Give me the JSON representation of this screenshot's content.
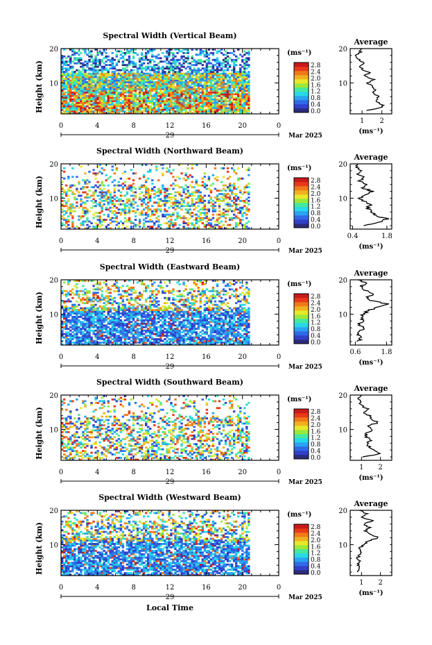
{
  "figure": {
    "xlabel_bottom": "Local Time"
  },
  "colorbar": {
    "unit_label": "(ms⁻¹)",
    "ticks": [
      "2.8",
      "2.4",
      "2.0",
      "1.6",
      "1.2",
      "0.8",
      "0.4",
      "0.0"
    ],
    "colors": [
      "#2b2b7a",
      "#3040c8",
      "#2f6ae6",
      "#2aa3f0",
      "#28d8e8",
      "#45e8a0",
      "#9be83c",
      "#e8e82a",
      "#f0b020",
      "#f07a1a",
      "#e83a1a",
      "#c81a1a"
    ]
  },
  "chart_data": [
    {
      "type": "heatmap",
      "title": "Spectral Width (Vertical Beam)",
      "ylabel": "Height (km)",
      "xlim": [
        0,
        24
      ],
      "ylim": [
        1,
        20
      ],
      "x_ticks": [
        "0",
        "4",
        "8",
        "12",
        "16",
        "20",
        "0"
      ],
      "day_label": "29",
      "date_label": "Mar 2025",
      "data_end_hour": 20.8,
      "pattern": "vertical",
      "profile": {
        "title": "Average",
        "xlabel": "(ms⁻¹)",
        "x_ticks": [
          "1",
          "2"
        ],
        "xlim": [
          0.4,
          2.5
        ],
        "heights": [
          2,
          3,
          4,
          5,
          6,
          7,
          8,
          9,
          10,
          11,
          12,
          13,
          14,
          15,
          16,
          17,
          18,
          19,
          20
        ],
        "values": [
          1.2,
          2.1,
          1.9,
          1.7,
          1.8,
          1.6,
          1.7,
          1.5,
          1.3,
          1.6,
          1.1,
          1.4,
          1.0,
          0.9,
          1.1,
          0.8,
          0.7,
          0.9,
          1.0
        ]
      }
    },
    {
      "type": "heatmap",
      "title": "Spectral Width (Northward Beam)",
      "ylabel": "Height (km)",
      "xlim": [
        0,
        24
      ],
      "ylim": [
        1,
        20
      ],
      "x_ticks": [
        "0",
        "4",
        "8",
        "12",
        "16",
        "20",
        "0"
      ],
      "day_label": "29",
      "date_label": "Mar 2025",
      "data_end_hour": 20.8,
      "pattern": "sparse",
      "profile": {
        "title": "Average",
        "xlabel": "(ms⁻¹)",
        "x_ticks": [
          "0.4",
          "1.8"
        ],
        "xlim": [
          0.3,
          2.0
        ],
        "heights": [
          2,
          3,
          4,
          5,
          6,
          7,
          8,
          9,
          10,
          11,
          12,
          13,
          14,
          15,
          16,
          17,
          18,
          19,
          20
        ],
        "values": [
          0.9,
          1.5,
          1.8,
          1.3,
          1.2,
          1.0,
          1.1,
          0.9,
          0.7,
          1.0,
          1.2,
          0.8,
          1.0,
          0.7,
          0.9,
          0.6,
          0.8,
          0.5,
          0.6
        ]
      }
    },
    {
      "type": "heatmap",
      "title": "Spectral Width (Eastward Beam)",
      "ylabel": "Height (km)",
      "xlim": [
        0,
        24
      ],
      "ylim": [
        1,
        20
      ],
      "x_ticks": [
        "0",
        "4",
        "8",
        "12",
        "16",
        "20",
        "0"
      ],
      "day_label": "29",
      "date_label": "Mar 2025",
      "data_end_hour": 20.8,
      "pattern": "dense_low",
      "profile": {
        "title": "Average",
        "xlabel": "(ms⁻¹)",
        "x_ticks": [
          "0.6",
          "1.8"
        ],
        "xlim": [
          0.4,
          2.0
        ],
        "heights": [
          2,
          3,
          4,
          5,
          6,
          7,
          8,
          9,
          10,
          11,
          12,
          13,
          14,
          15,
          16,
          17,
          18,
          19,
          20
        ],
        "values": [
          0.7,
          0.8,
          0.7,
          0.8,
          0.9,
          0.7,
          1.0,
          0.8,
          0.9,
          1.1,
          1.4,
          1.8,
          1.2,
          1.1,
          1.3,
          1.0,
          0.8,
          1.0,
          0.7
        ]
      }
    },
    {
      "type": "heatmap",
      "title": "Spectral Width (Southward Beam)",
      "ylabel": "Height (km)",
      "xlim": [
        0,
        24
      ],
      "ylim": [
        1,
        20
      ],
      "x_ticks": [
        "0",
        "4",
        "8",
        "12",
        "16",
        "20",
        "0"
      ],
      "day_label": "29",
      "date_label": "Mar 2025",
      "data_end_hour": 20.8,
      "pattern": "sparse",
      "profile": {
        "title": "Average",
        "xlabel": "(ms⁻¹)",
        "x_ticks": [
          "1",
          "2"
        ],
        "xlim": [
          0.4,
          2.6
        ],
        "heights": [
          2,
          3,
          4,
          5,
          6,
          7,
          8,
          9,
          10,
          11,
          12,
          13,
          14,
          15,
          16,
          17,
          18,
          19,
          20
        ],
        "values": [
          1.1,
          2.0,
          1.6,
          1.4,
          1.3,
          1.5,
          1.2,
          1.3,
          1.6,
          1.3,
          1.9,
          1.5,
          1.4,
          1.1,
          1.3,
          1.0,
          0.9,
          0.8,
          1.0
        ]
      }
    },
    {
      "type": "heatmap",
      "title": "Spectral Width (Westward Beam)",
      "ylabel": "Height (km)",
      "xlim": [
        0,
        24
      ],
      "ylim": [
        1,
        20
      ],
      "x_ticks": [
        "0",
        "4",
        "8",
        "12",
        "16",
        "20",
        "0"
      ],
      "day_label": "29",
      "date_label": "Mar 2025",
      "data_end_hour": 20.8,
      "pattern": "dense_low",
      "profile": {
        "title": "Average",
        "xlabel": "(ms⁻¹)",
        "x_ticks": [
          "1",
          "2"
        ],
        "xlim": [
          0.4,
          2.6
        ],
        "heights": [
          2,
          3,
          4,
          5,
          6,
          7,
          8,
          9,
          10,
          11,
          12,
          13,
          14,
          15,
          16,
          17,
          18,
          19,
          20
        ],
        "values": [
          0.8,
          0.9,
          0.8,
          0.9,
          0.8,
          0.9,
          1.0,
          0.9,
          1.1,
          1.3,
          1.9,
          1.4,
          1.2,
          1.4,
          1.1,
          1.6,
          1.0,
          1.3,
          0.9
        ]
      }
    }
  ]
}
